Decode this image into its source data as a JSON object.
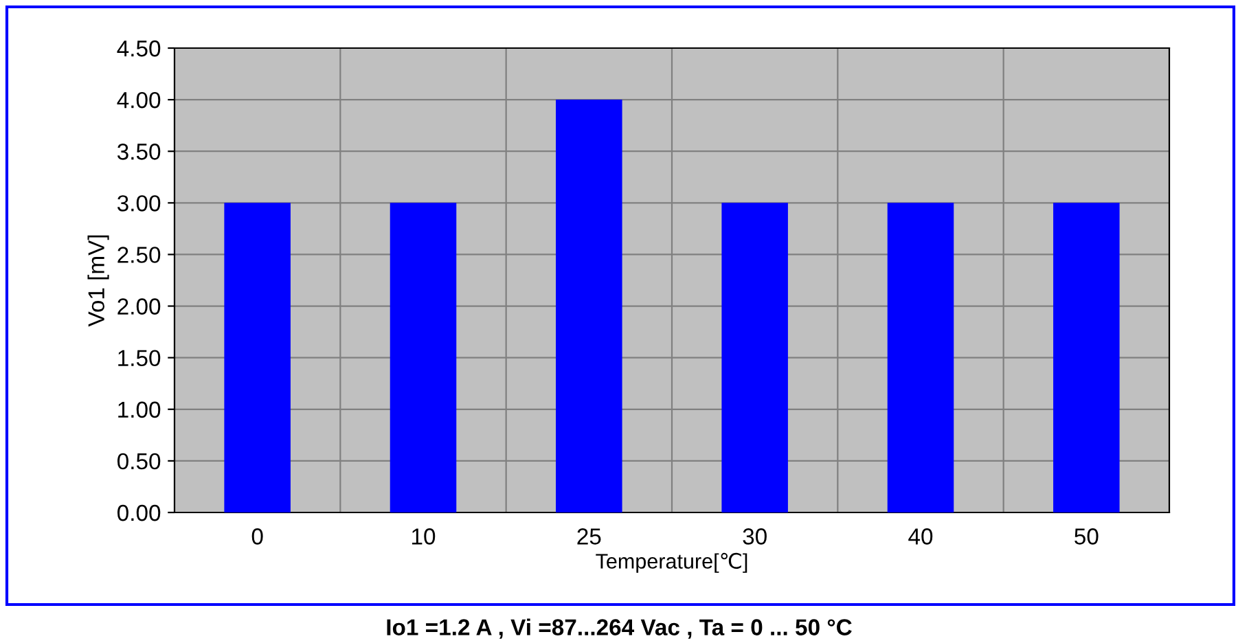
{
  "chart_data": {
    "type": "bar",
    "xlabel": "Temperature[℃]",
    "ylabel": "Vo1 [mV]",
    "categories": [
      "0",
      "10",
      "25",
      "30",
      "40",
      "50"
    ],
    "values": [
      3,
      3,
      4,
      3,
      3,
      3
    ],
    "color": "#0000ff",
    "ylim": [
      0,
      4.5
    ],
    "yticks": [
      {
        "value": 0,
        "label": "0.00"
      },
      {
        "value": 0.5,
        "label": "0.50"
      },
      {
        "value": 1,
        "label": "1.00"
      },
      {
        "value": 1.5,
        "label": "1.50"
      },
      {
        "value": 2,
        "label": "2.00"
      },
      {
        "value": 2.5,
        "label": "2.50"
      },
      {
        "value": 3,
        "label": "3.00"
      },
      {
        "value": 3.5,
        "label": "3.50"
      },
      {
        "value": 4,
        "label": "4.00"
      },
      {
        "value": 4.5,
        "label": "4.50"
      }
    ],
    "grid": true,
    "annotations": [
      "Io1 =1.2 A , Vi =87...264 Vac , Ta = 0 ... 50 °C"
    ]
  }
}
